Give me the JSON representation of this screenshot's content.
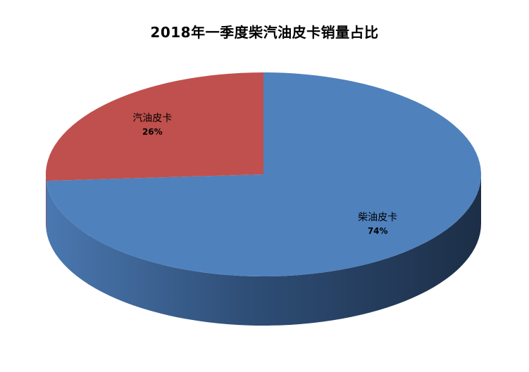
{
  "chart_data": {
    "type": "pie",
    "title": "2018年一季度柴汽油皮卡销量占比",
    "slices": [
      {
        "name": "柴油皮卡",
        "value": 74,
        "label": "74%",
        "color": "#4F81BD"
      },
      {
        "name": "汽油皮卡",
        "value": 26,
        "label": "26%",
        "color": "#C0504D"
      }
    ],
    "style": "3d"
  }
}
